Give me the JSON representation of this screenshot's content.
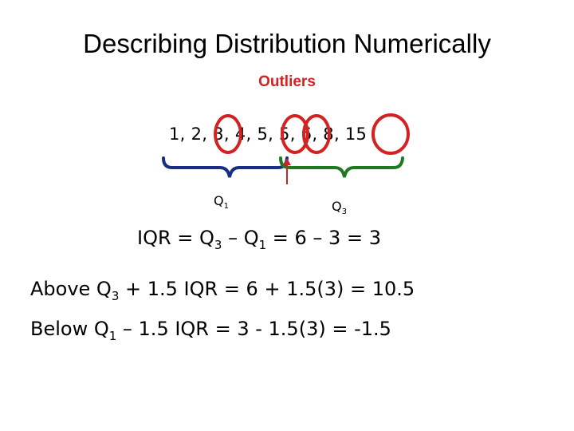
{
  "slide": {
    "title": "Describing Distribution Numerically",
    "subtitle": "Outliers",
    "sequence": "1, 2, 3, 4, 5, 5, 6, 8, 15",
    "q1_label": {
      "letter": "Q",
      "sub": "1"
    },
    "q3_label": {
      "letter": "Q",
      "sub": "3"
    },
    "iqr": {
      "pre": "IQR = Q",
      "sub1": "3",
      "mid": " – Q",
      "sub2": "1",
      "post": " = 6 – 3 = 3"
    },
    "above": {
      "pre": "Above Q",
      "sub": "3",
      "post": " + 1.5 IQR = 6 + 1.5(3) = 10.5"
    },
    "below": {
      "pre": "Below Q",
      "sub": "1",
      "post": " – 1.5 IQR = 3 - 1.5(3) = -1.5"
    }
  },
  "colors": {
    "outlier_red": "#d42121",
    "lower_half_brace": "#1a2d86",
    "upper_half_brace": "#1f7a1f",
    "median_arrow": "#c0282a"
  }
}
